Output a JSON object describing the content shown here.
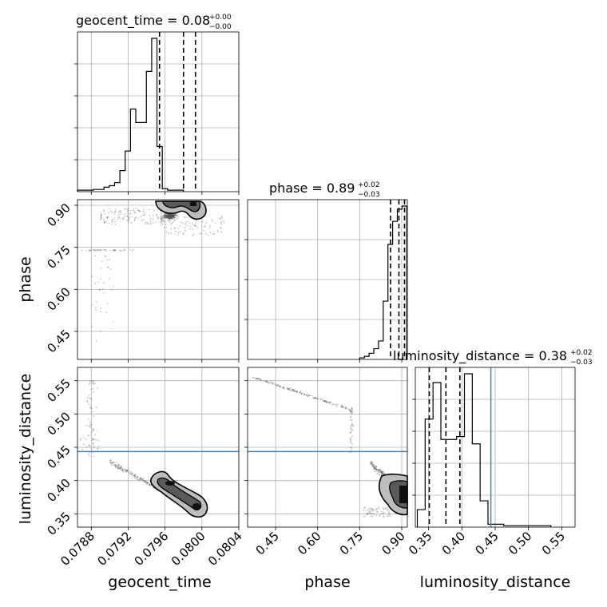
{
  "chart_data": [
    {
      "panel": "1d-histogram",
      "parameter": "geocent_time",
      "type": "histogram",
      "title": {
        "label": "geocent_time",
        "median": "0.08",
        "plus": "+0.00",
        "minus": "−0.00"
      },
      "xlim": [
        0.07865,
        0.0804
      ],
      "x_ticks": [
        "0.0788",
        "0.0792",
        "0.0796",
        "0.0800",
        "0.0804"
      ],
      "x_tick_values": [
        0.0788,
        0.0792,
        0.0796,
        0.08,
        0.0804
      ],
      "quantile_lines": [
        0.07954,
        0.0798,
        0.07993
      ],
      "bins": {
        "start": 0.07865,
        "width": 5.75e-05,
        "counts": [
          0.01,
          0.01,
          0.01,
          0.015,
          0.015,
          0.03,
          0.04,
          0.06,
          0.14,
          0.27,
          0.55,
          0.46,
          0.46,
          0.8,
          1.02,
          0.3,
          0.02,
          0.01,
          0.01,
          0.01
        ]
      },
      "grid": true
    },
    {
      "panel": "1d-histogram",
      "parameter": "phase",
      "type": "histogram",
      "title": {
        "label": "phase",
        "median": "0.89",
        "plus": "+0.02",
        "minus": "−0.03"
      },
      "xlim": [
        0.35,
        0.92
      ],
      "quantile_lines": [
        0.86,
        0.89,
        0.91
      ],
      "bins": {
        "start": 0.75,
        "width": 0.0168,
        "counts": [
          0.01,
          0.02,
          0.04,
          0.07,
          0.12,
          0.38,
          0.75,
          0.9,
          0.98,
          1.0
        ]
      },
      "grid": true
    },
    {
      "panel": "1d-histogram",
      "parameter": "luminosity_distance",
      "type": "histogram",
      "title": {
        "label": "luminosity_distance",
        "median": "0.38",
        "plus": "+0.02",
        "minus": "−0.03"
      },
      "xlim": [
        0.33,
        0.57
      ],
      "x_ticks": [
        "0.35",
        "0.40",
        "0.45",
        "0.50",
        "0.55"
      ],
      "x_tick_values": [
        0.35,
        0.4,
        0.45,
        0.5,
        0.55
      ],
      "quantile_lines": [
        0.351,
        0.376,
        0.397
      ],
      "truth": 0.4435,
      "bins": {
        "start": 0.333,
        "width": 0.0118,
        "counts": [
          0.12,
          0.74,
          0.99,
          0.6,
          0.6,
          0.62,
          1.05,
          0.57,
          0.18,
          0.02,
          0.02,
          0.01,
          0.01,
          0.01,
          0.01,
          0.01,
          0.01
        ]
      },
      "grid": true
    },
    {
      "panel": "2d-scatter-contour",
      "type": "scatter",
      "x": "geocent_time",
      "y": "phase",
      "xlim": [
        0.07865,
        0.0804
      ],
      "ylim": [
        0.35,
        0.92
      ],
      "y_ticks": [
        "0.45",
        "0.60",
        "0.75",
        "0.90"
      ],
      "y_tick_values": [
        0.45,
        0.6,
        0.75,
        0.9
      ],
      "grid": true
    },
    {
      "panel": "2d-scatter-contour",
      "type": "scatter",
      "x": "geocent_time",
      "y": "luminosity_distance",
      "xlim": [
        0.07865,
        0.0804
      ],
      "ylim": [
        0.33,
        0.57
      ],
      "y_ticks": [
        "0.35",
        "0.40",
        "0.45",
        "0.50",
        "0.55"
      ],
      "y_tick_values": [
        0.35,
        0.4,
        0.45,
        0.5,
        0.55
      ],
      "truth_y": 0.4435,
      "grid": true
    },
    {
      "panel": "2d-scatter-contour",
      "type": "scatter",
      "x": "phase",
      "y": "luminosity_distance",
      "xlim": [
        0.35,
        0.92
      ],
      "ylim": [
        0.33,
        0.57
      ],
      "x_ticks": [
        "0.45",
        "0.60",
        "0.75",
        "0.90"
      ],
      "x_tick_values": [
        0.45,
        0.6,
        0.75,
        0.9
      ],
      "truth_y": 0.4435,
      "grid": true
    }
  ],
  "axis_labels": {
    "geocent_time": "geocent_time",
    "phase": "phase",
    "luminosity_distance": "luminosity_distance"
  },
  "colors": {
    "truth": "#4682b4",
    "hist": "#000000",
    "grid": "#b0b0b0",
    "scatter": "#555555",
    "contour_fill_outer": "#bdbdbd",
    "contour_fill_inner": "#5a5a5a",
    "contour_core": "#111111"
  }
}
